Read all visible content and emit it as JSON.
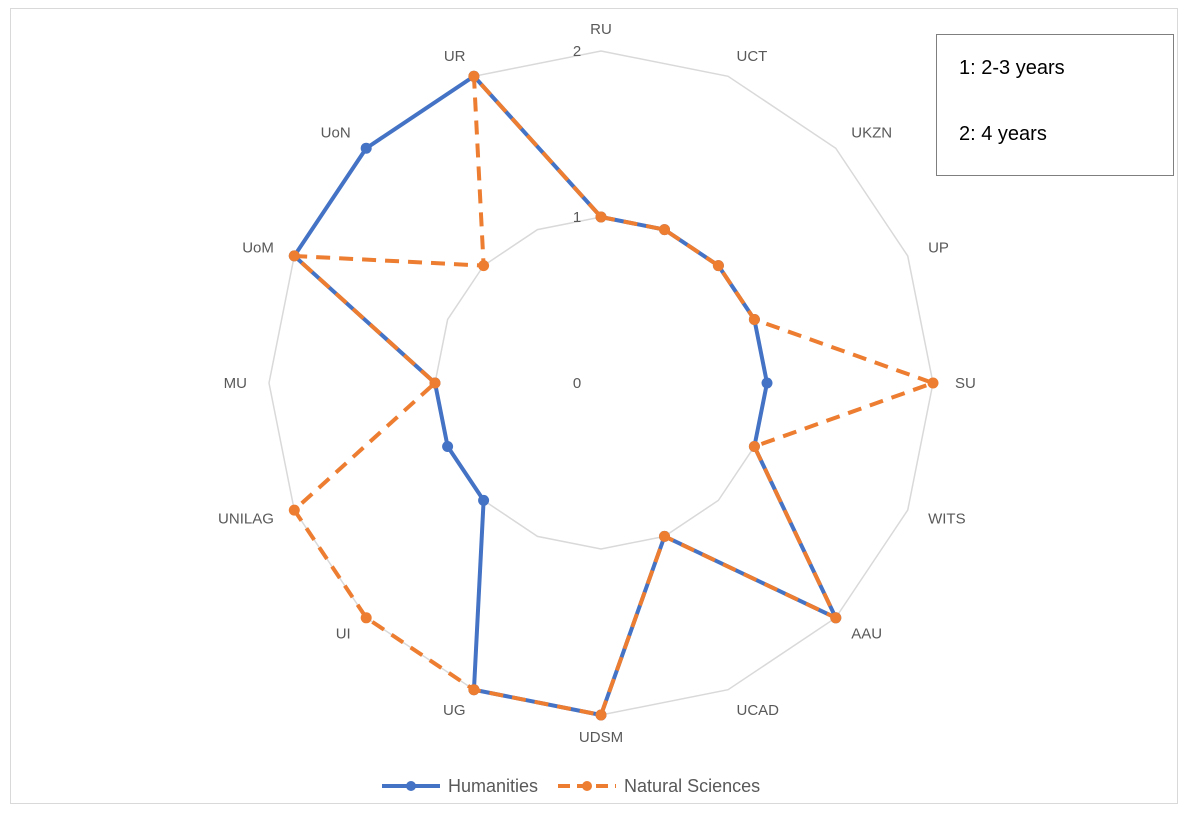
{
  "chart_data": {
    "type": "radar",
    "categories": [
      "RU",
      "UCT",
      "UKZN",
      "UP",
      "SU",
      "WITS",
      "AAU",
      "UCAD",
      "UDSM",
      "UG",
      "UI",
      "UNILAG",
      "MU",
      "UoM",
      "UoN",
      "UR"
    ],
    "ring_labels": [
      "0",
      "1",
      "2"
    ],
    "rmax": 2,
    "series": [
      {
        "name": "Humanities",
        "color": "#4472c4",
        "dashed": false,
        "values": [
          1,
          1,
          1,
          1,
          1,
          1,
          2,
          1,
          2,
          2,
          1,
          1,
          1,
          2,
          2,
          2
        ]
      },
      {
        "name": "Natural Sciences",
        "color": "#ed7d31",
        "dashed": true,
        "values": [
          1,
          1,
          1,
          1,
          2,
          1,
          2,
          1,
          2,
          2,
          2,
          2,
          1,
          2,
          1,
          2
        ]
      }
    ]
  },
  "note": {
    "line1": "1: 2-3 years",
    "line2": "2: 4 years"
  },
  "legend": {
    "humanities": "Humanities",
    "natural_sciences": "Natural Sciences"
  }
}
